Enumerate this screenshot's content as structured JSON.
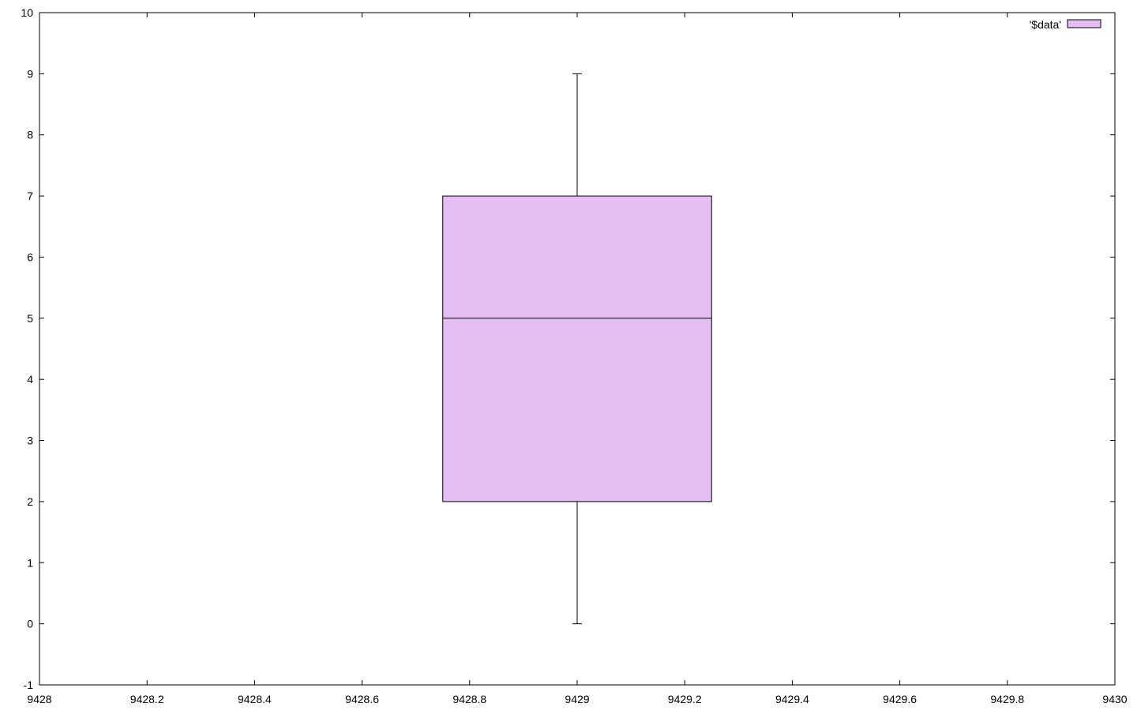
{
  "chart_data": {
    "type": "boxplot",
    "title": "",
    "xlabel": "",
    "ylabel": "",
    "xlim": [
      9428,
      9430
    ],
    "ylim": [
      -1,
      10
    ],
    "x_ticks": [
      "9428",
      "9428.2",
      "9428.4",
      "9428.6",
      "9428.8",
      "9429",
      "9429.2",
      "9429.4",
      "9429.6",
      "9429.8",
      "9430"
    ],
    "y_ticks": [
      "-1",
      "0",
      "1",
      "2",
      "3",
      "4",
      "5",
      "6",
      "7",
      "8",
      "9",
      "10"
    ],
    "grid": false,
    "legend": {
      "position": "top-right",
      "entries": [
        "'$data'"
      ]
    },
    "series": [
      {
        "name": "'$data'",
        "color": "#e4bdf2",
        "boxes": [
          {
            "x": 9429,
            "width": 0.5,
            "whisker_low": 0,
            "q1": 2,
            "median": 5,
            "q3": 7,
            "whisker_high": 9
          }
        ]
      }
    ]
  }
}
